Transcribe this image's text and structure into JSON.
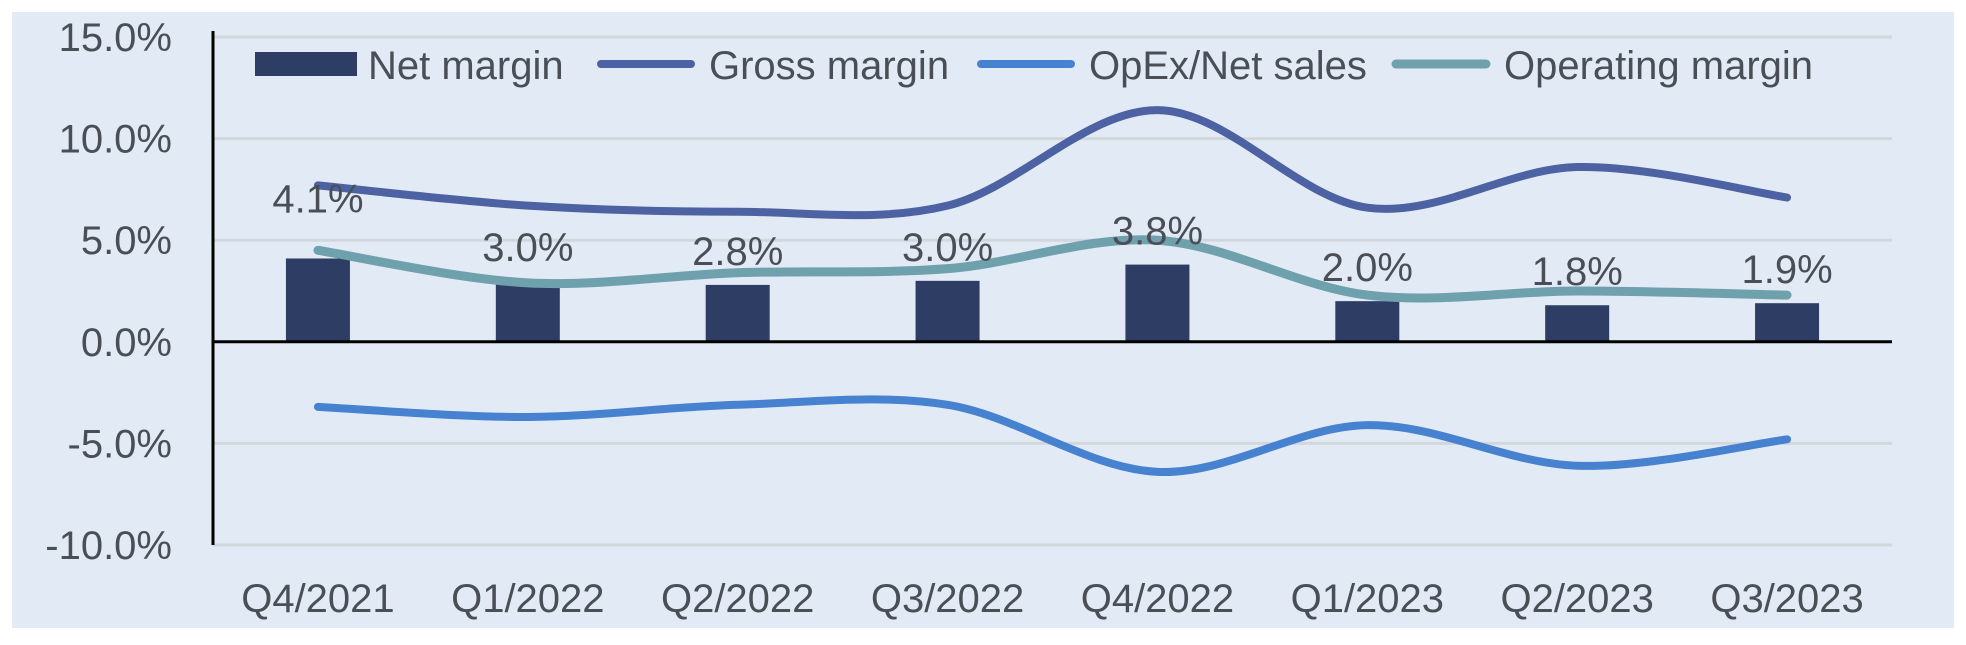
{
  "chart_data": {
    "type": "bar",
    "title": "",
    "xlabel": "",
    "ylabel": "",
    "categories": [
      "Q4/2021",
      "Q1/2022",
      "Q2/2022",
      "Q3/2022",
      "Q4/2022",
      "Q1/2023",
      "Q2/2023",
      "Q3/2023"
    ],
    "ylim": [
      -10,
      15
    ],
    "yticks": [
      15,
      10,
      5,
      0,
      -5,
      -10
    ],
    "ytick_labels": [
      "15.0%",
      "10.0%",
      "5.0%",
      "0.0%",
      "-5.0%",
      "-10.0%"
    ],
    "grid": true,
    "legend_position": "top",
    "series": [
      {
        "name": "Net margin",
        "type": "bar",
        "color": "#2e3d63",
        "values": [
          4.1,
          3.0,
          2.8,
          3.0,
          3.8,
          2.0,
          1.8,
          1.9
        ],
        "labels": [
          "4.1%",
          "3.0%",
          "2.8%",
          "3.0%",
          "3.8%",
          "2.0%",
          "1.8%",
          "1.9%"
        ]
      },
      {
        "name": "Gross margin",
        "type": "line",
        "color": "#4d62a3",
        "values": [
          7.7,
          6.7,
          6.4,
          6.7,
          11.4,
          6.6,
          8.6,
          7.1
        ]
      },
      {
        "name": "OpEx/Net sales",
        "type": "line",
        "color": "#4682d0",
        "values": [
          -3.2,
          -3.7,
          -3.1,
          -3.1,
          -6.4,
          -4.1,
          -6.1,
          -4.8
        ]
      },
      {
        "name": "Operating margin",
        "type": "line",
        "color": "#6fa1ad",
        "values": [
          4.5,
          2.9,
          3.4,
          3.6,
          5.0,
          2.3,
          2.5,
          2.3
        ]
      }
    ]
  },
  "colors": {
    "background": "#e2ebf5",
    "gridline": "#d3d7dc",
    "axis": "#000000",
    "text": "#4a4f57"
  }
}
